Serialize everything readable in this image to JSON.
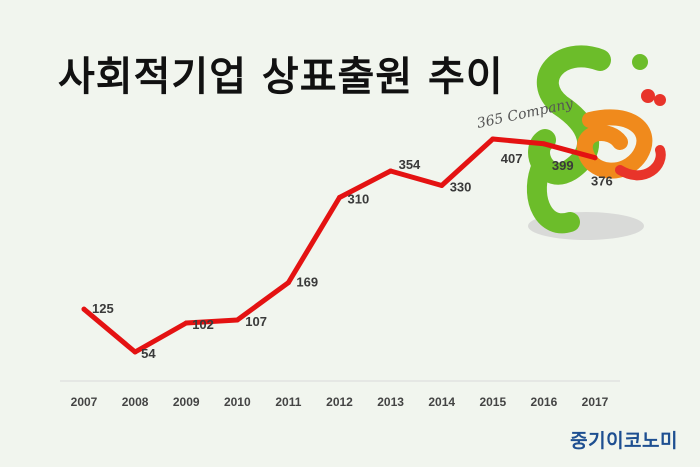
{
  "title": "사회적기업 상표출원 추이",
  "brand": "중기이코노미",
  "logo_text": "365 Company",
  "colors": {
    "line": "#e41212",
    "background": "#f1f5ee",
    "brand": "#1e4f91",
    "logo_green": "#6cbd2a",
    "logo_orange": "#f08a1c",
    "logo_red": "#e8342a"
  },
  "chart_data": {
    "type": "line",
    "title": "사회적기업 상표출원 추이",
    "xlabel": "",
    "ylabel": "",
    "categories": [
      "2007",
      "2008",
      "2009",
      "2010",
      "2011",
      "2012",
      "2013",
      "2014",
      "2015",
      "2016",
      "2017"
    ],
    "values": [
      125,
      54,
      102,
      107,
      169,
      310,
      354,
      330,
      407,
      399,
      376
    ],
    "data_labels": [
      "125",
      "54",
      "102",
      "107",
      "169",
      "310",
      "354",
      "330",
      "407",
      "399",
      "376"
    ],
    "ylim": [
      0,
      430
    ],
    "grid": false,
    "legend": "none"
  }
}
